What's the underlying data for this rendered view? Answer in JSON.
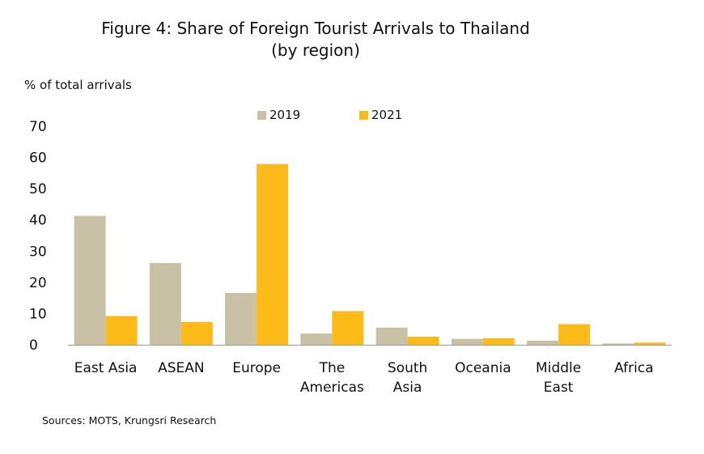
{
  "chart_data": {
    "type": "bar",
    "title": "Figure 4: Share of Foreign Tourist Arrivals to Thailand",
    "subtitle": "(by region)",
    "ylabel": "% of total arrivals",
    "xlabel": "",
    "ylim": [
      0,
      70
    ],
    "yticks": [
      0,
      10,
      20,
      30,
      40,
      50,
      60,
      70
    ],
    "grid": false,
    "legend_position": "top-center",
    "categories": [
      [
        "East Asia"
      ],
      [
        "ASEAN"
      ],
      [
        "Europe"
      ],
      [
        "The",
        "Americas"
      ],
      [
        "South",
        "Asia"
      ],
      [
        "Oceania"
      ],
      [
        "Middle",
        "East"
      ],
      [
        "Africa"
      ]
    ],
    "series": [
      {
        "name": "2019",
        "color": "#c8c1a5",
        "values": [
          41.3,
          26.2,
          16.6,
          3.6,
          5.5,
          1.9,
          1.3,
          0.4
        ]
      },
      {
        "name": "2021",
        "color": "#fdbb1a",
        "values": [
          9.2,
          7.3,
          57.9,
          10.8,
          2.6,
          2.1,
          6.6,
          0.7
        ]
      }
    ],
    "source": "Sources: MOTS, Krungsri Research"
  }
}
